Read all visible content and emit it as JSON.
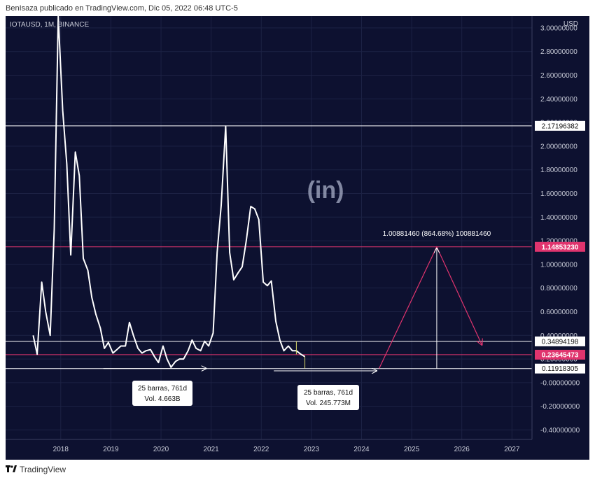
{
  "caption": "BenIsaza publicado en TradingView.com, Dic 05, 2022 06:48 UTC-5",
  "symbol": "IOTAUSD, 1M, BINANCE",
  "currency": "USD",
  "watermark_logo_text": "(in)",
  "footer_brand": "TradingView",
  "colors": {
    "background": "#0d1130",
    "line": "#ffffff",
    "pink": "#e0346e",
    "grid": "#1d2244",
    "text": "#c9ccd8"
  },
  "chart_data": {
    "type": "line",
    "title": "",
    "xlabel": "",
    "ylabel": "USD",
    "xlim": [
      2016.9,
      2027.4
    ],
    "ylim": [
      -0.48,
      3.1
    ],
    "x_ticks": [
      "2018",
      "2019",
      "2020",
      "2021",
      "2022",
      "2023",
      "2024",
      "2025",
      "2026",
      "2027"
    ],
    "y_ticks": [
      "3.00000000",
      "2.80000000",
      "2.60000000",
      "2.40000000",
      "2.20000000",
      "2.00000000",
      "1.80000000",
      "1.60000000",
      "1.40000000",
      "1.20000000",
      "1.00000000",
      "0.80000000",
      "0.60000000",
      "0.40000000",
      "0.20000000",
      "-0.00000000",
      "-0.20000000",
      "-0.40000000"
    ],
    "series": [
      {
        "x": [
          2017.45,
          2017.53,
          2017.62,
          2017.7,
          2017.79,
          2017.87,
          2017.95,
          2018.04,
          2018.12,
          2018.2,
          2018.29,
          2018.37,
          2018.45,
          2018.54,
          2018.62,
          2018.7,
          2018.79,
          2018.87,
          2018.95,
          2019.04,
          2019.12,
          2019.2,
          2019.29,
          2019.37,
          2019.45,
          2019.54,
          2019.62,
          2019.7,
          2019.79,
          2019.87,
          2019.95,
          2020.04,
          2020.12,
          2020.2,
          2020.29,
          2020.37,
          2020.45,
          2020.54,
          2020.62,
          2020.7,
          2020.79,
          2020.87,
          2020.95,
          2021.04,
          2021.12,
          2021.2,
          2021.29,
          2021.37,
          2021.45,
          2021.54,
          2021.62,
          2021.7,
          2021.79,
          2021.87,
          2021.95,
          2022.04,
          2022.12,
          2022.2,
          2022.29,
          2022.37,
          2022.45,
          2022.54,
          2022.62,
          2022.7,
          2022.79,
          2022.87
        ],
        "values": [
          0.4,
          0.24,
          0.85,
          0.6,
          0.4,
          1.3,
          3.1,
          2.3,
          1.85,
          1.08,
          1.95,
          1.75,
          1.05,
          0.95,
          0.72,
          0.58,
          0.46,
          0.29,
          0.34,
          0.25,
          0.28,
          0.31,
          0.31,
          0.51,
          0.4,
          0.29,
          0.25,
          0.27,
          0.28,
          0.22,
          0.17,
          0.31,
          0.2,
          0.13,
          0.18,
          0.2,
          0.2,
          0.27,
          0.36,
          0.29,
          0.27,
          0.35,
          0.31,
          0.42,
          1.1,
          1.5,
          2.17,
          1.1,
          0.87,
          0.93,
          0.98,
          1.2,
          1.49,
          1.47,
          1.38,
          0.85,
          0.82,
          0.86,
          0.52,
          0.36,
          0.27,
          0.31,
          0.27,
          0.27,
          0.24,
          0.22
        ]
      }
    ],
    "horizontal_levels": [
      {
        "value": 2.17196382,
        "label": "2.17196382",
        "color": "#ffffff"
      },
      {
        "value": 1.1485323,
        "label": "1.14853230",
        "color": "#e0346e"
      },
      {
        "value": 0.34894198,
        "label": "0.34894198",
        "color": "#ffffff"
      },
      {
        "value": 0.23645473,
        "label": "0.23645473",
        "color": "#e0346e"
      },
      {
        "value": 0.11918305,
        "label": "0.11918305",
        "color": "#ffffff"
      }
    ],
    "measure_boxes": [
      {
        "line1": "25 barras, 761d",
        "line2": "Vol. 4.663B",
        "from": [
          2018.85,
          0.12
        ],
        "to": [
          2020.9,
          0.12
        ]
      },
      {
        "line1": "25 barras, 761d",
        "line2": "Vol. 245.773M",
        "from": [
          2022.25,
          0.1
        ],
        "to": [
          2024.3,
          0.1
        ]
      }
    ],
    "projection": {
      "label": "1.00881460 (864.68%) 100881460",
      "points": [
        [
          2024.35,
          0.12
        ],
        [
          2025.5,
          1.1485323
        ],
        [
          2026.4,
          0.32
        ]
      ],
      "vertical_x": 2025.5,
      "vertical_from": 0.11918305,
      "vertical_to": 1.1485323
    }
  }
}
